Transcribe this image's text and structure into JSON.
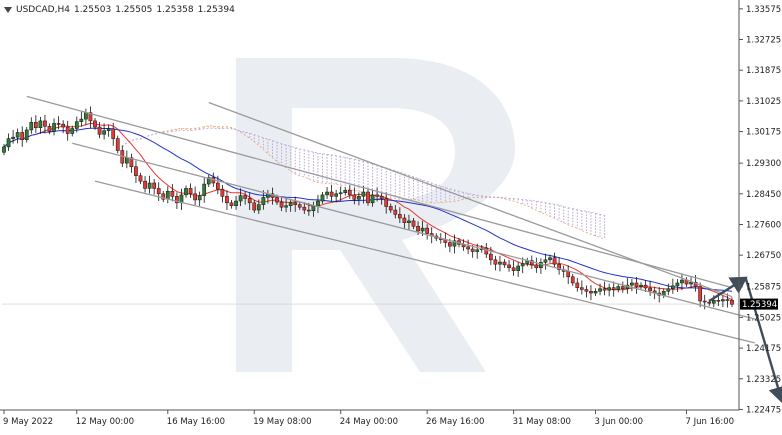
{
  "header": {
    "symbol": "USDCAD,H4",
    "ohlc": [
      "1.25503",
      "1.25505",
      "1.25358",
      "1.25394"
    ]
  },
  "chart_data": {
    "type": "candlestick",
    "symbol": "USDCAD",
    "timeframe": "H4",
    "current_price": "1.25394",
    "ylim": [
      1.2246,
      1.3382
    ],
    "y_ticks": [
      "1.33575",
      "1.32725",
      "1.31875",
      "1.31025",
      "1.30175",
      "1.29300",
      "1.28450",
      "1.27600",
      "1.26750",
      "1.25875",
      "1.25025",
      "1.24175",
      "1.23325",
      "1.22475"
    ],
    "x_ticks": [
      "9 May 2022",
      "12 May 00:00",
      "16 May 16:00",
      "19 May 08:00",
      "24 May 00:00",
      "26 May 16:00",
      "31 May 08:00",
      "3 Jun 00:00",
      "7 Jun 16:00"
    ],
    "x_tick_bar_index": [
      0,
      16,
      36,
      55,
      74,
      93,
      112,
      130,
      150
    ],
    "bars_visible": 165,
    "candle_colors": {
      "up": "#2e7d32",
      "down": "#e53935"
    },
    "closes": [
      1.2975,
      1.2998,
      1.3002,
      1.3015,
      1.2995,
      1.3022,
      1.3043,
      1.3028,
      1.3047,
      1.3032,
      1.3018,
      1.304,
      1.3038,
      1.303,
      1.3012,
      1.3026,
      1.3045,
      1.3052,
      1.307,
      1.3047,
      1.303,
      1.301,
      1.302,
      1.3025,
      1.2998,
      1.2965,
      1.293,
      1.2945,
      1.292,
      1.2895,
      1.288,
      1.286,
      1.2875,
      1.286,
      1.2845,
      1.283,
      1.2852,
      1.2838,
      1.282,
      1.2842,
      1.286,
      1.2845,
      1.2828,
      1.284,
      1.2872,
      1.289,
      1.2875,
      1.2858,
      1.2838,
      1.282,
      1.2812,
      1.2825,
      1.284,
      1.2832,
      1.282,
      1.28,
      1.2815,
      1.2835,
      1.2845,
      1.2835,
      1.2822,
      1.2808,
      1.2812,
      1.282,
      1.2815,
      1.2808,
      1.28,
      1.2798,
      1.2812,
      1.2825,
      1.2842,
      1.285,
      1.2838,
      1.2845,
      1.2848,
      1.2855,
      1.2842,
      1.283,
      1.2838,
      1.285,
      1.282,
      1.2842,
      1.2838,
      1.2832,
      1.281,
      1.28,
      1.2788,
      1.2778,
      1.2765,
      1.277,
      1.2755,
      1.2742,
      1.275,
      1.2735,
      1.2728,
      1.2722,
      1.2718,
      1.271,
      1.27,
      1.2715,
      1.2705,
      1.2698,
      1.2692,
      1.2685,
      1.269,
      1.2695,
      1.2678,
      1.2662,
      1.265,
      1.2656,
      1.2648,
      1.264,
      1.2632,
      1.2645,
      1.2652,
      1.266,
      1.2648,
      1.264,
      1.2655,
      1.2662,
      1.2668,
      1.265,
      1.2635,
      1.263,
      1.2615,
      1.2598,
      1.2585,
      1.258,
      1.2575,
      1.257,
      1.2575,
      1.2582,
      1.2578,
      1.2585,
      1.258,
      1.2588,
      1.2582,
      1.2592,
      1.2598,
      1.2588,
      1.2592,
      1.2584,
      1.2576,
      1.257,
      1.2564,
      1.2575,
      1.2582,
      1.259,
      1.2598,
      1.2606,
      1.2595,
      1.26,
      1.2588,
      1.2548,
      1.2545,
      1.2542,
      1.255,
      1.2548,
      1.2552,
      1.255,
      1.2539
    ],
    "trend_channel": {
      "upper_1": [
        [
          5,
          1.3115
        ],
        [
          160,
          1.2585
        ]
      ],
      "upper_2": [
        [
          45,
          1.3098
        ],
        [
          160,
          1.256
        ]
      ],
      "lower_1": [
        [
          15,
          1.2985
        ],
        [
          165,
          1.2498
        ]
      ],
      "lower_2": [
        [
          20,
          1.288
        ],
        [
          165,
          1.2432
        ]
      ]
    },
    "forecast_path": [
      [
        155,
        1.2548
      ],
      [
        163,
        1.2612
      ],
      [
        171,
        1.227
      ]
    ]
  }
}
